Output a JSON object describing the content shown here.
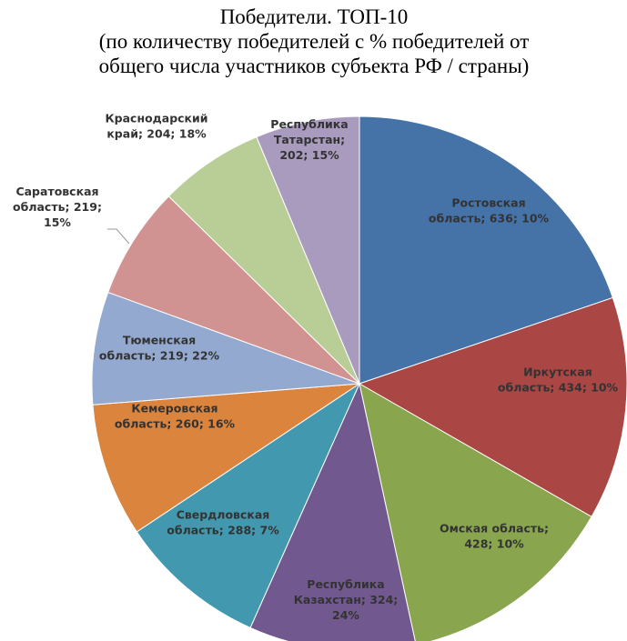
{
  "chart_data": {
    "type": "pie",
    "title": "Победители. ТОП-10",
    "subtitle": [
      "(по количеству победителей с % победителей от",
      "общего числа участников субъекта РФ / страны)"
    ],
    "categories": [
      "Ростовская область",
      "Иркутская область",
      "Омская область",
      "Республика Казахстан",
      "Свердловская область",
      "Кемеровская область",
      "Тюменская область",
      "Саратовская область",
      "Краснодарский край",
      "Республика Татарстан"
    ],
    "values": [
      636,
      434,
      428,
      324,
      288,
      260,
      219,
      219,
      204,
      202
    ],
    "value_labels": [
      [
        "Ростовская",
        "область; 636; 10%"
      ],
      [
        "Иркутская",
        "область; 434; 10%"
      ],
      [
        "Омская область;",
        "428; 10%"
      ],
      [
        "Республика",
        "Казахстан; 324;",
        "24%"
      ],
      [
        "Свердловская",
        "область; 288; 7%"
      ],
      [
        "Кемеровская",
        "область; 260; 16%"
      ],
      [
        "Тюменская",
        "область; 219; 22%"
      ],
      [
        "Саратовская",
        "область; 219;",
        "15%"
      ],
      [
        "Краснодарский",
        "край; 204; 18%"
      ],
      [
        "Республика",
        "Татарстан;",
        "202; 15%"
      ]
    ],
    "colors": [
      "#4572a7",
      "#aa4643",
      "#89a54e",
      "#71588f",
      "#4198af",
      "#db843d",
      "#93a9cf",
      "#d19392",
      "#b9cd96",
      "#a99bbd"
    ]
  }
}
